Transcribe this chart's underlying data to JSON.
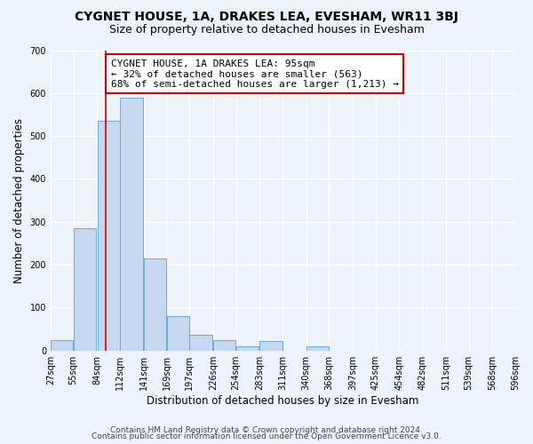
{
  "title": "CYGNET HOUSE, 1A, DRAKES LEA, EVESHAM, WR11 3BJ",
  "subtitle": "Size of property relative to detached houses in Evesham",
  "xlabel": "Distribution of detached houses by size in Evesham",
  "ylabel": "Number of detached properties",
  "bar_left_edges": [
    27,
    55,
    84,
    112,
    141,
    169,
    197,
    226,
    254,
    283,
    311,
    340,
    368,
    397,
    425,
    454,
    482,
    511,
    539,
    568
  ],
  "bar_heights": [
    25,
    285,
    535,
    590,
    215,
    80,
    37,
    25,
    10,
    22,
    0,
    10,
    0,
    0,
    0,
    0,
    0,
    0,
    0,
    0
  ],
  "bin_width": 28,
  "bar_color": "#c5d8f0",
  "bar_edge_color": "#6aaad4",
  "property_size": 95,
  "red_line_color": "#cc0000",
  "annotation_text": "CYGNET HOUSE, 1A DRAKES LEA: 95sqm\n← 32% of detached houses are smaller (563)\n68% of semi-detached houses are larger (1,213) →",
  "annotation_box_color": "#ffffff",
  "annotation_box_edge": "#cc0000",
  "ylim": [
    0,
    700
  ],
  "yticks": [
    0,
    100,
    200,
    300,
    400,
    500,
    600,
    700
  ],
  "tick_labels": [
    "27sqm",
    "55sqm",
    "84sqm",
    "112sqm",
    "141sqm",
    "169sqm",
    "197sqm",
    "226sqm",
    "254sqm",
    "283sqm",
    "311sqm",
    "340sqm",
    "368sqm",
    "397sqm",
    "425sqm",
    "454sqm",
    "482sqm",
    "511sqm",
    "539sqm",
    "568sqm",
    "596sqm"
  ],
  "footer_line1": "Contains HM Land Registry data © Crown copyright and database right 2024.",
  "footer_line2": "Contains public sector information licensed under the Open Government Licence v3.0.",
  "bg_color": "#eef2f9",
  "grid_color": "#ffffff",
  "title_fontsize": 10,
  "subtitle_fontsize": 9,
  "axis_label_fontsize": 8.5,
  "tick_fontsize": 7,
  "annotation_fontsize": 8,
  "footer_fontsize": 6.5
}
